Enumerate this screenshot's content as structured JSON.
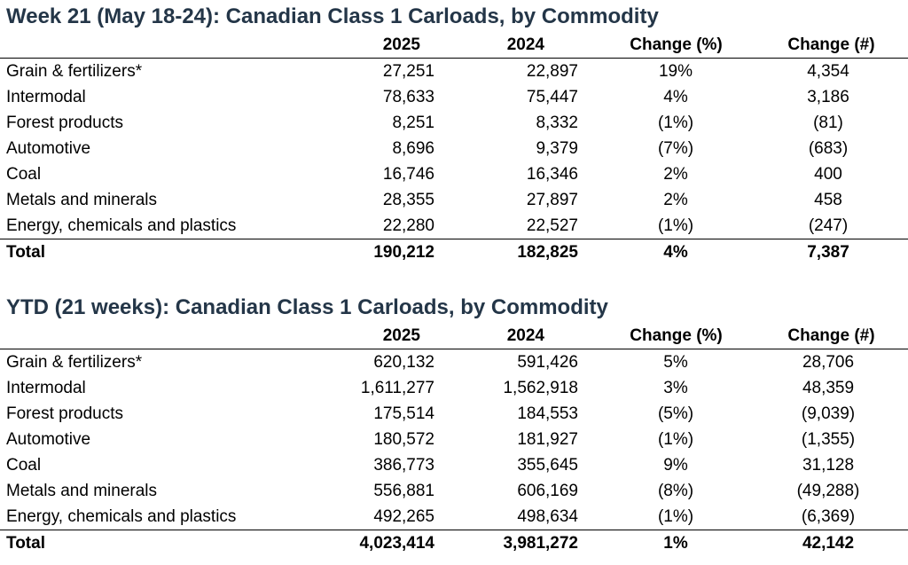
{
  "weekly": {
    "title": "Week 21 (May 18-24): Canadian Class 1 Carloads, by Commodity",
    "headers": {
      "col_2025": "2025",
      "col_2024": "2024",
      "change_pct": "Change (%)",
      "change_num": "Change (#)"
    },
    "rows": [
      {
        "label": "Grain & fertilizers*",
        "v2025": "27,251",
        "v2024": "22,897",
        "pct": "19%",
        "num": "4,354"
      },
      {
        "label": "Intermodal",
        "v2025": "78,633",
        "v2024": "75,447",
        "pct": "4%",
        "num": "3,186"
      },
      {
        "label": "Forest products",
        "v2025": "8,251",
        "v2024": "8,332",
        "pct": "(1%)",
        "num": "(81)"
      },
      {
        "label": "Automotive",
        "v2025": "8,696",
        "v2024": "9,379",
        "pct": "(7%)",
        "num": "(683)"
      },
      {
        "label": "Coal",
        "v2025": "16,746",
        "v2024": "16,346",
        "pct": "2%",
        "num": "400"
      },
      {
        "label": "Metals and minerals",
        "v2025": "28,355",
        "v2024": "27,897",
        "pct": "2%",
        "num": "458"
      },
      {
        "label": "Energy, chemicals and plastics",
        "v2025": "22,280",
        "v2024": "22,527",
        "pct": "(1%)",
        "num": "(247)"
      }
    ],
    "total": {
      "label": "Total",
      "v2025": "190,212",
      "v2024": "182,825",
      "pct": "4%",
      "num": "7,387"
    }
  },
  "ytd": {
    "title": "YTD (21 weeks): Canadian Class 1 Carloads, by Commodity",
    "headers": {
      "col_2025": "2025",
      "col_2024": "2024",
      "change_pct": "Change (%)",
      "change_num": "Change (#)"
    },
    "rows": [
      {
        "label": "Grain & fertilizers*",
        "v2025": "620,132",
        "v2024": "591,426",
        "pct": "5%",
        "num": "28,706"
      },
      {
        "label": "Intermodal",
        "v2025": "1,611,277",
        "v2024": "1,562,918",
        "pct": "3%",
        "num": "48,359"
      },
      {
        "label": "Forest products",
        "v2025": "175,514",
        "v2024": "184,553",
        "pct": "(5%)",
        "num": "(9,039)"
      },
      {
        "label": "Automotive",
        "v2025": "180,572",
        "v2024": "181,927",
        "pct": "(1%)",
        "num": "(1,355)"
      },
      {
        "label": "Coal",
        "v2025": "386,773",
        "v2024": "355,645",
        "pct": "9%",
        "num": "31,128"
      },
      {
        "label": "Metals and minerals",
        "v2025": "556,881",
        "v2024": "606,169",
        "pct": "(8%)",
        "num": "(49,288)"
      },
      {
        "label": "Energy, chemicals and plastics",
        "v2025": "492,265",
        "v2024": "498,634",
        "pct": "(1%)",
        "num": "(6,369)"
      }
    ],
    "total": {
      "label": "Total",
      "v2025": "4,023,414",
      "v2024": "3,981,272",
      "pct": "1%",
      "num": "42,142"
    }
  },
  "colors": {
    "title": "#243648",
    "text": "#000000",
    "rule": "#000000"
  }
}
